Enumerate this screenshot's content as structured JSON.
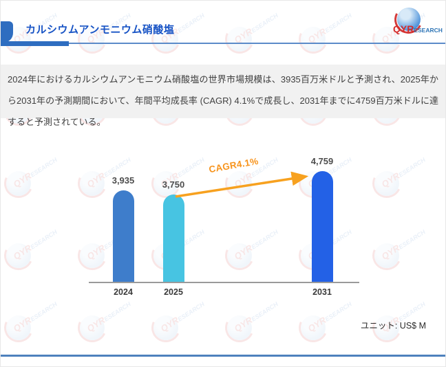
{
  "header": {
    "title": "カルシウムアンモニウム硝酸塩",
    "logo": {
      "qyr": "QYR",
      "esearch": "ESEARCH"
    }
  },
  "summary": {
    "text": "2024年におけるカルシウムアンモニウム硝酸塩の世界市場規模は、3935百万米ドルと予測され、2025年から2031年の予測期間において、年間平均成長率 (CAGR) 4.1%で成長し、2031年までに4759百万米ドルに達すると予測されている。"
  },
  "chart_data": {
    "type": "bar",
    "categories": [
      "2024",
      "2025",
      "2031"
    ],
    "values": [
      3935,
      3750,
      4759
    ],
    "value_labels": [
      "3,935",
      "3,750",
      "4,759"
    ],
    "annotation": "CAGR4.1%",
    "unit_label": "ユニット: US$ M",
    "bar_colors": [
      "#3e7dcb",
      "#47c4e2",
      "#2361e6"
    ],
    "arrow_color": "#f7a11f",
    "axis_color": "#9a9a9a",
    "grid": false,
    "ylim": [
      0,
      5000
    ]
  },
  "watermark": {
    "qyr": "QYR",
    "esearch": "ESEARCH"
  }
}
